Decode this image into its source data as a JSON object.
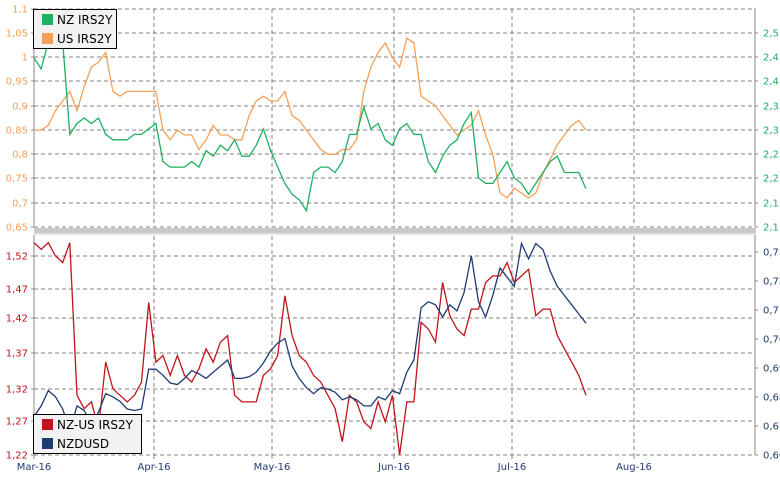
{
  "colors": {
    "nz_irs2y": "#1eb060",
    "us_irs2y": "#f5a05a",
    "nz_us_irs2y": "#c0141c",
    "nzdusd": "#1f3b73",
    "left_axis_top": "#f5a05a",
    "right_axis_top": "#1eb060",
    "left_axis_bottom": "#c0141c",
    "right_axis_bottom": "#1f3b73",
    "grid": "#808080"
  },
  "legend_top": {
    "items": [
      {
        "label": "NZ IRS2Y",
        "color": "#1eb060"
      },
      {
        "label": "US IRS2Y",
        "color": "#f5a05a"
      }
    ]
  },
  "legend_bottom": {
    "items": [
      {
        "label": "NZ-US IRS2Y",
        "color": "#c0141c"
      },
      {
        "label": "NZDUSD",
        "color": "#1f3b73"
      }
    ]
  },
  "chart_data": [
    {
      "type": "line",
      "title": "",
      "xlabel": "",
      "ylabel": "",
      "x_ticks": [
        "Mar-16",
        "Apr-16",
        "May-16",
        "Jun-16",
        "Jul-16",
        "Aug-16"
      ],
      "y_left_ticks": [
        "0,65",
        "0,7",
        "0,75",
        "0,8",
        "0,85",
        "0,9",
        "0,95",
        "1",
        "1,05",
        "1,1"
      ],
      "y_left_range": [
        0.65,
        1.1
      ],
      "y_right_ticks": [
        "2,1",
        "2,15",
        "2,2",
        "2,25",
        "2,3",
        "2,35",
        "2,4",
        "2,45",
        "2,5"
      ],
      "y_right_range": [
        2.1,
        2.5
      ],
      "grid": true,
      "legend_position": "top-left",
      "series": [
        {
          "name": "US IRS2Y",
          "axis": "left",
          "x": [
            0,
            2,
            4,
            6,
            8,
            10,
            12,
            14,
            16,
            18,
            20,
            22,
            24,
            26,
            28,
            30,
            32,
            34,
            36,
            38,
            40,
            42,
            44,
            46,
            48,
            50,
            52,
            54,
            56,
            58,
            60,
            62,
            64,
            66,
            68,
            70,
            72,
            74,
            76,
            78,
            80,
            82,
            84,
            86,
            88,
            90,
            92,
            94,
            96,
            98,
            100,
            102,
            104,
            106,
            108,
            110,
            112,
            114,
            116,
            118,
            120,
            122,
            124,
            126,
            128,
            130,
            132,
            134,
            136,
            138,
            140,
            142,
            144,
            146,
            148,
            150,
            152,
            154
          ],
          "values": [
            0.85,
            0.85,
            0.86,
            0.89,
            0.91,
            0.93,
            0.89,
            0.94,
            0.98,
            0.99,
            1.01,
            0.93,
            0.92,
            0.93,
            0.93,
            0.93,
            0.93,
            0.93,
            0.85,
            0.83,
            0.85,
            0.84,
            0.84,
            0.81,
            0.83,
            0.86,
            0.84,
            0.84,
            0.83,
            0.83,
            0.88,
            0.91,
            0.92,
            0.91,
            0.91,
            0.93,
            0.88,
            0.87,
            0.85,
            0.83,
            0.81,
            0.8,
            0.8,
            0.81,
            0.81,
            0.83,
            0.93,
            0.98,
            1.01,
            1.03,
            1.0,
            0.98,
            1.04,
            1.03,
            0.92,
            0.91,
            0.9,
            0.88,
            0.86,
            0.84,
            0.85,
            0.86,
            0.89,
            0.84,
            0.8,
            0.72,
            0.71,
            0.73,
            0.72,
            0.71,
            0.72,
            0.76,
            0.79,
            0.82,
            0.84,
            0.86,
            0.87,
            0.85
          ]
        },
        {
          "name": "NZ IRS2Y",
          "axis": "right",
          "x": [
            0,
            2,
            4,
            6,
            8,
            10,
            12,
            14,
            16,
            18,
            20,
            22,
            24,
            26,
            28,
            30,
            32,
            34,
            36,
            38,
            40,
            42,
            44,
            46,
            48,
            50,
            52,
            54,
            56,
            58,
            60,
            62,
            64,
            66,
            68,
            70,
            72,
            74,
            76,
            78,
            80,
            82,
            84,
            86,
            88,
            90,
            92,
            94,
            96,
            98,
            100,
            102,
            104,
            106,
            108,
            110,
            112,
            114,
            116,
            118,
            120,
            122,
            124,
            126,
            128,
            130,
            132,
            134,
            136,
            138,
            140,
            142,
            144,
            146,
            148,
            150,
            152,
            154
          ],
          "values": [
            2.41,
            2.39,
            2.44,
            2.45,
            2.44,
            2.27,
            2.29,
            2.3,
            2.29,
            2.3,
            2.27,
            2.26,
            2.26,
            2.26,
            2.27,
            2.27,
            2.28,
            2.29,
            2.22,
            2.21,
            2.21,
            2.21,
            2.22,
            2.21,
            2.24,
            2.23,
            2.25,
            2.24,
            2.26,
            2.23,
            2.23,
            2.25,
            2.28,
            2.24,
            2.21,
            2.18,
            2.16,
            2.15,
            2.13,
            2.2,
            2.21,
            2.21,
            2.2,
            2.22,
            2.27,
            2.27,
            2.32,
            2.28,
            2.29,
            2.26,
            2.25,
            2.28,
            2.29,
            2.27,
            2.27,
            2.22,
            2.2,
            2.23,
            2.25,
            2.26,
            2.29,
            2.31,
            2.19,
            2.18,
            2.18,
            2.2,
            2.22,
            2.19,
            2.18,
            2.16,
            2.18,
            2.2,
            2.22,
            2.23,
            2.2,
            2.2,
            2.2,
            2.17
          ]
        }
      ]
    },
    {
      "type": "line",
      "title": "",
      "xlabel": "",
      "ylabel": "",
      "x_ticks": [
        "Mar-16",
        "Apr-16",
        "May-16",
        "Jun-16",
        "Jul-16",
        "Aug-16"
      ],
      "y_left_ticks": [
        "1,22",
        "1,27",
        "1,32",
        "1,37",
        "1,42",
        "1,47",
        "1,52"
      ],
      "y_left_range": [
        1.22,
        1.54
      ],
      "y_right_ticks": [
        "0,6600",
        "0,6700",
        "0,6800",
        "0,6900",
        "0,7000",
        "0,7100",
        "0,7200",
        "0,7300"
      ],
      "y_right_range": [
        0.66,
        0.734
      ],
      "grid": true,
      "legend_position": "bottom-left",
      "series": [
        {
          "name": "NZ-US IRS2Y",
          "axis": "left",
          "x": [
            0,
            2,
            4,
            6,
            8,
            10,
            12,
            14,
            16,
            18,
            20,
            22,
            24,
            26,
            28,
            30,
            32,
            34,
            36,
            38,
            40,
            42,
            44,
            46,
            48,
            50,
            52,
            54,
            56,
            58,
            60,
            62,
            64,
            66,
            68,
            70,
            72,
            74,
            76,
            78,
            80,
            82,
            84,
            86,
            88,
            90,
            92,
            94,
            96,
            98,
            100,
            102,
            104,
            106,
            108,
            110,
            112,
            114,
            116,
            118,
            120,
            122,
            124,
            126,
            128,
            130,
            132,
            134,
            136,
            138,
            140,
            142,
            144,
            146,
            148,
            150,
            152,
            154
          ],
          "values": [
            1.54,
            1.53,
            1.54,
            1.52,
            1.51,
            1.54,
            1.31,
            1.29,
            1.3,
            1.26,
            1.36,
            1.32,
            1.31,
            1.3,
            1.31,
            1.33,
            1.45,
            1.36,
            1.37,
            1.34,
            1.37,
            1.34,
            1.33,
            1.35,
            1.38,
            1.36,
            1.39,
            1.4,
            1.31,
            1.3,
            1.3,
            1.3,
            1.34,
            1.35,
            1.37,
            1.46,
            1.4,
            1.37,
            1.36,
            1.34,
            1.33,
            1.31,
            1.29,
            1.24,
            1.31,
            1.3,
            1.27,
            1.26,
            1.3,
            1.27,
            1.31,
            1.22,
            1.3,
            1.3,
            1.42,
            1.41,
            1.39,
            1.48,
            1.43,
            1.41,
            1.4,
            1.44,
            1.44,
            1.48,
            1.49,
            1.49,
            1.51,
            1.48,
            1.49,
            1.5,
            1.43,
            1.44,
            1.44,
            1.4,
            1.38,
            1.36,
            1.34,
            1.31
          ]
        },
        {
          "name": "NZDUSD",
          "axis": "right",
          "x": [
            0,
            2,
            4,
            6,
            8,
            10,
            12,
            14,
            16,
            18,
            20,
            22,
            24,
            26,
            28,
            30,
            32,
            34,
            36,
            38,
            40,
            42,
            44,
            46,
            48,
            50,
            52,
            54,
            56,
            58,
            60,
            62,
            64,
            66,
            68,
            70,
            72,
            74,
            76,
            78,
            80,
            82,
            84,
            86,
            88,
            90,
            92,
            94,
            96,
            98,
            100,
            102,
            104,
            106,
            108,
            110,
            112,
            114,
            116,
            118,
            120,
            122,
            124,
            126,
            128,
            130,
            132,
            134,
            136,
            138,
            140,
            142,
            144,
            146,
            148,
            150,
            152,
            154
          ],
          "values": [
            0.6725,
            0.676,
            0.681,
            0.679,
            0.675,
            0.668,
            0.676,
            0.6745,
            0.67,
            0.674,
            0.68,
            0.679,
            0.6775,
            0.675,
            0.6745,
            0.675,
            0.688,
            0.688,
            0.686,
            0.6835,
            0.683,
            0.685,
            0.6875,
            0.6865,
            0.685,
            0.687,
            0.689,
            0.691,
            0.685,
            0.685,
            0.6855,
            0.687,
            0.69,
            0.694,
            0.6965,
            0.698,
            0.689,
            0.685,
            0.682,
            0.68,
            0.682,
            0.6815,
            0.6805,
            0.678,
            0.679,
            0.678,
            0.676,
            0.676,
            0.679,
            0.678,
            0.681,
            0.68,
            0.687,
            0.691,
            0.708,
            0.71,
            0.709,
            0.705,
            0.709,
            0.707,
            0.713,
            0.725,
            0.71,
            0.705,
            0.712,
            0.721,
            0.718,
            0.715,
            0.729,
            0.724,
            0.729,
            0.727,
            0.72,
            0.715,
            0.712,
            0.709,
            0.706,
            0.703
          ]
        }
      ]
    }
  ]
}
